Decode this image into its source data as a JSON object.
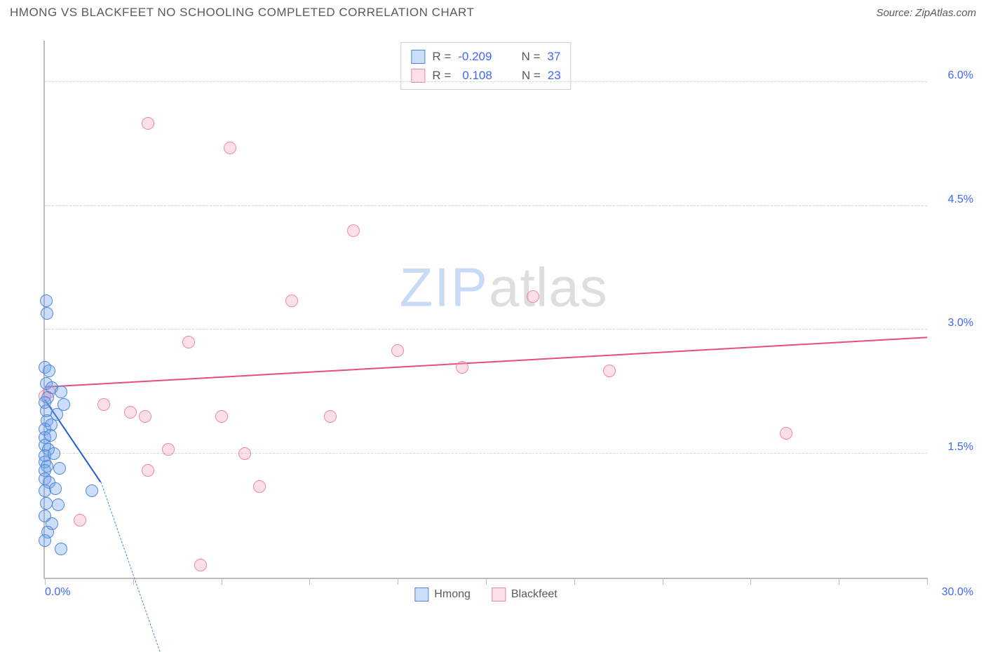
{
  "header": {
    "title": "HMONG VS BLACKFEET NO SCHOOLING COMPLETED CORRELATION CHART",
    "source": "Source: ZipAtlas.com"
  },
  "chart": {
    "type": "scatter",
    "ylabel": "No Schooling Completed",
    "xlim": [
      0,
      30
    ],
    "ylim": [
      0,
      6.5
    ],
    "x_origin_label": "0.0%",
    "x_max_label": "30.0%",
    "x_tick_positions": [
      0,
      3,
      6,
      9,
      12,
      15,
      18,
      21,
      24,
      27,
      30
    ],
    "y_gridlines": [
      {
        "value": 1.5,
        "label": "1.5%"
      },
      {
        "value": 3.0,
        "label": "3.0%"
      },
      {
        "value": 4.5,
        "label": "4.5%"
      },
      {
        "value": 6.0,
        "label": "6.0%"
      }
    ],
    "background_color": "#ffffff",
    "grid_color": "#d5d5d5",
    "axis_color": "#bdbdbd",
    "tick_label_color": "#3b68ff",
    "marker_radius": 9,
    "marker_stroke_width": 1.5,
    "series": [
      {
        "name": "Hmong",
        "fill_color": "rgba(108,160,237,0.35)",
        "stroke_color": "#4d88d8",
        "R": "-0.209",
        "N": "37",
        "trend": {
          "x1": 0.0,
          "y1": 2.15,
          "x2": 1.9,
          "y2": 1.15,
          "solid_color": "#1e5fd6",
          "dash_to_x": 3.9,
          "dash_to_y": -0.9
        },
        "points": [
          [
            0.05,
            3.35
          ],
          [
            0.08,
            3.2
          ],
          [
            0.0,
            2.55
          ],
          [
            0.15,
            2.5
          ],
          [
            0.05,
            2.35
          ],
          [
            0.25,
            2.3
          ],
          [
            0.55,
            2.25
          ],
          [
            0.1,
            2.18
          ],
          [
            0.0,
            2.12
          ],
          [
            0.65,
            2.1
          ],
          [
            0.05,
            2.02
          ],
          [
            0.4,
            1.98
          ],
          [
            0.08,
            1.9
          ],
          [
            0.0,
            1.8
          ],
          [
            0.22,
            1.85
          ],
          [
            0.0,
            1.7
          ],
          [
            0.18,
            1.72
          ],
          [
            0.0,
            1.6
          ],
          [
            0.12,
            1.55
          ],
          [
            0.0,
            1.48
          ],
          [
            0.3,
            1.5
          ],
          [
            0.0,
            1.4
          ],
          [
            0.08,
            1.35
          ],
          [
            0.0,
            1.3
          ],
          [
            0.5,
            1.32
          ],
          [
            0.0,
            1.2
          ],
          [
            0.15,
            1.15
          ],
          [
            0.0,
            1.05
          ],
          [
            0.35,
            1.08
          ],
          [
            1.6,
            1.05
          ],
          [
            0.05,
            0.9
          ],
          [
            0.45,
            0.88
          ],
          [
            0.0,
            0.75
          ],
          [
            0.25,
            0.65
          ],
          [
            0.1,
            0.55
          ],
          [
            0.55,
            0.35
          ],
          [
            0.0,
            0.45
          ]
        ]
      },
      {
        "name": "Blackfeet",
        "fill_color": "rgba(244,153,177,0.30)",
        "stroke_color": "#e98aa4",
        "R": "0.108",
        "N": "23",
        "trend": {
          "x1": 0.0,
          "y1": 2.3,
          "x2": 30.0,
          "y2": 2.9,
          "solid_color": "#e94d7a"
        },
        "points": [
          [
            3.5,
            5.5
          ],
          [
            6.3,
            5.2
          ],
          [
            10.5,
            4.2
          ],
          [
            8.4,
            3.35
          ],
          [
            16.6,
            3.4
          ],
          [
            4.9,
            2.85
          ],
          [
            12.0,
            2.75
          ],
          [
            14.2,
            2.55
          ],
          [
            19.2,
            2.5
          ],
          [
            0.15,
            2.25
          ],
          [
            2.0,
            2.1
          ],
          [
            2.9,
            2.0
          ],
          [
            3.4,
            1.95
          ],
          [
            6.0,
            1.95
          ],
          [
            9.7,
            1.95
          ],
          [
            25.2,
            1.75
          ],
          [
            4.2,
            1.55
          ],
          [
            6.8,
            1.5
          ],
          [
            3.5,
            1.3
          ],
          [
            7.3,
            1.1
          ],
          [
            1.2,
            0.7
          ],
          [
            5.3,
            0.15
          ],
          [
            0.0,
            2.2
          ]
        ]
      }
    ],
    "watermark": {
      "zip": "ZIP",
      "atlas": "atlas"
    },
    "legend": {
      "series1": "Hmong",
      "series2": "Blackfeet"
    }
  }
}
